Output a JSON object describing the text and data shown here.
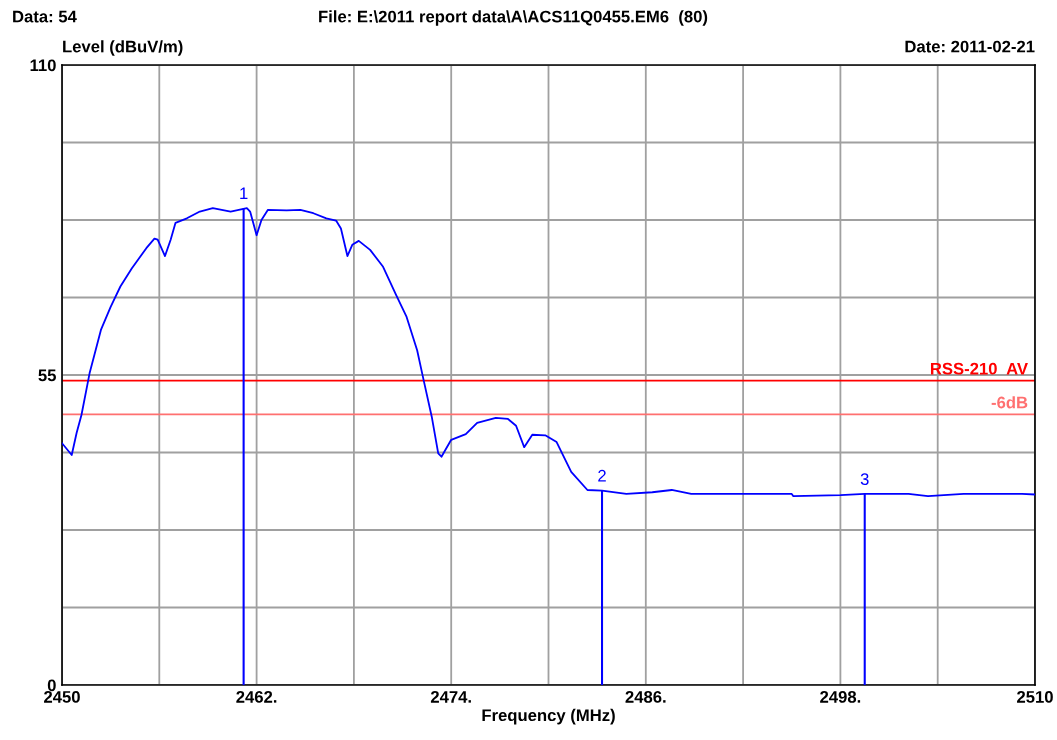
{
  "chart_data": {
    "type": "line",
    "title": "File: E:\\2011 report data\\A\\ACS11Q0455.EM6  (80)",
    "xlabel": "Frequency (MHz)",
    "ylabel": "Level (dBuV/m)",
    "annotations": [
      "Data: 54",
      "Date: 2011-02-21",
      {
        "text": "1",
        "x": 2461.2,
        "y": 84.6
      },
      {
        "text": "2",
        "x": 2483.3,
        "y": 34.5
      },
      {
        "text": "3",
        "x": 2499.5,
        "y": 33.9
      }
    ],
    "series": [
      {
        "color": "#0000ff",
        "x": [
          2450.0,
          2450.6,
          2450.9,
          2451.2,
          2451.7,
          2452.0,
          2452.4,
          2453.0,
          2453.6,
          2454.3,
          2455.2,
          2455.7,
          2455.9,
          2456.35,
          2456.7,
          2457.0,
          2457.7,
          2458.5,
          2459.3,
          2460.4,
          2461.4,
          2461.6,
          2462.0,
          2462.3,
          2462.7,
          2463.85,
          2464.7,
          2465.5,
          2466.3,
          2466.9,
          2467.2,
          2467.6,
          2467.9,
          2468.3,
          2469.0,
          2469.8,
          2470.6,
          2471.25,
          2471.9,
          2472.3,
          2472.8,
          2473.2,
          2473.4,
          2474.0,
          2474.9,
          2475.6,
          2476.75,
          2477.5,
          2478.0,
          2478.5,
          2479.0,
          2479.8,
          2480.5,
          2481.4,
          2482.4,
          2483.3,
          2484.8,
          2486.4,
          2487.6,
          2488.8,
          2495.0,
          2495.1,
          2498.0,
          2499.5,
          2502.2,
          2503.4,
          2505.6,
          2509.2,
          2510.0
        ],
        "values": [
          42.9,
          40.8,
          44.7,
          47.9,
          55.3,
          58.6,
          63.0,
          67.1,
          70.7,
          73.9,
          77.5,
          79.2,
          79.0,
          76.1,
          79.0,
          82.0,
          82.8,
          84.0,
          84.6,
          84.0,
          84.6,
          84.0,
          79.8,
          82.5,
          84.3,
          84.2,
          84.3,
          83.7,
          82.8,
          82.4,
          81.0,
          76.1,
          78.1,
          78.8,
          77.2,
          74.2,
          69.2,
          65.3,
          59.4,
          54.1,
          47.6,
          41.1,
          40.5,
          43.5,
          44.5,
          46.5,
          47.4,
          47.2,
          46.0,
          42.2,
          44.4,
          44.3,
          43.1,
          37.8,
          34.6,
          34.5,
          33.9,
          34.2,
          34.6,
          33.9,
          33.9,
          33.5,
          33.7,
          33.9,
          33.9,
          33.5,
          33.9,
          33.9,
          33.8
        ]
      }
    ],
    "xlim": [
      2450,
      2510
    ],
    "xticks": [
      2450,
      {
        "value": 2456,
        "label": null
      },
      {
        "value": 2462,
        "label": "2462."
      },
      {
        "value": 2468,
        "label": null
      },
      {
        "value": 2474,
        "label": "2474."
      },
      {
        "value": 2480,
        "label": null
      },
      {
        "value": 2486,
        "label": "2486."
      },
      {
        "value": 2492,
        "label": null
      },
      {
        "value": 2498,
        "label": "2498."
      },
      {
        "value": 2504,
        "label": null
      },
      2510
    ],
    "ylim": [
      0,
      110
    ],
    "yticks": [
      0,
      {
        "value": 13.75,
        "label": null
      },
      {
        "value": 27.5,
        "label": null
      },
      {
        "value": 41.25,
        "label": null
      },
      55,
      {
        "value": 68.75,
        "label": null
      },
      {
        "value": 82.5,
        "label": null
      },
      {
        "value": 96.25,
        "label": null
      },
      110
    ],
    "ref_lines": [
      {
        "axis": "y",
        "value": 54,
        "label": "RSS-210  AV",
        "color": "#ff0000"
      },
      {
        "axis": "y",
        "value": 48,
        "label": "-6dB",
        "color": "#ff7070"
      }
    ],
    "grid": true,
    "marker": "none",
    "line_style": "solid"
  }
}
